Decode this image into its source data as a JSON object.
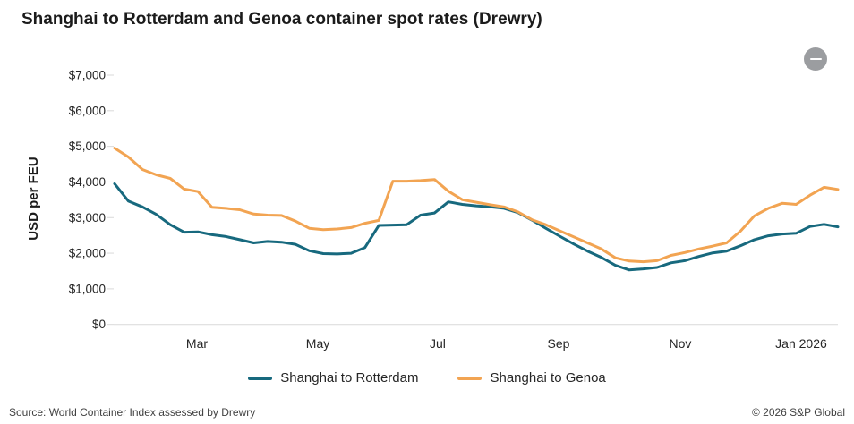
{
  "header": {
    "title": "Shanghai to Rotterdam and Genoa container spot rates (Drewry)",
    "collapse_button": "minus"
  },
  "chart_data": {
    "type": "line",
    "title": "Shanghai to Rotterdam and Genoa container spot rates (Drewry)",
    "xlabel": "",
    "ylabel": "USD per FEU",
    "ylim": [
      0,
      7000
    ],
    "ytick_step": 1000,
    "ytick_labels": [
      "$0",
      "$1,000",
      "$2,000",
      "$3,000",
      "$4,000",
      "$5,000",
      "$6,000",
      "$7,000"
    ],
    "grid": false,
    "legend_position": "bottom",
    "x_axis": {
      "unit": "weekly spot-rate observations, late Jan 2025 to mid Jan 2026",
      "total_weeks": 52,
      "tick_labels": [
        "Mar",
        "May",
        "Jul",
        "Sep",
        "Nov",
        "Jan 2026"
      ],
      "tick_week_positions": [
        5.92,
        14.61,
        23.23,
        31.92,
        40.67,
        49.36
      ]
    },
    "series": [
      {
        "name": "Shanghai to Rotterdam",
        "color": "#17697e",
        "values": [
          3950,
          3460,
          3300,
          3090,
          2800,
          2590,
          2600,
          2520,
          2470,
          2380,
          2290,
          2330,
          2310,
          2250,
          2070,
          1990,
          1980,
          2000,
          2160,
          2780,
          2790,
          2800,
          3070,
          3130,
          3440,
          3370,
          3330,
          3300,
          3260,
          3140,
          2930,
          2700,
          2480,
          2260,
          2060,
          1880,
          1660,
          1530,
          1560,
          1600,
          1730,
          1790,
          1910,
          2010,
          2060,
          2210,
          2380,
          2490,
          2540,
          2560,
          2750,
          2810,
          2740
        ]
      },
      {
        "name": "Shanghai to Genoa",
        "color": "#f2a452",
        "values": [
          4950,
          4700,
          4350,
          4200,
          4100,
          3800,
          3730,
          3290,
          3260,
          3220,
          3100,
          3070,
          3060,
          2900,
          2700,
          2660,
          2680,
          2720,
          2840,
          2920,
          4020,
          4020,
          4040,
          4070,
          3740,
          3500,
          3430,
          3360,
          3300,
          3160,
          2940,
          2800,
          2630,
          2460,
          2290,
          2120,
          1870,
          1780,
          1760,
          1790,
          1940,
          2020,
          2120,
          2200,
          2290,
          2620,
          3050,
          3260,
          3400,
          3370,
          3630,
          3850,
          3790
        ]
      }
    ]
  },
  "footer": {
    "source": "Source: World Container Index assessed by Drewry",
    "copyright": "© 2026 S&P Global"
  }
}
